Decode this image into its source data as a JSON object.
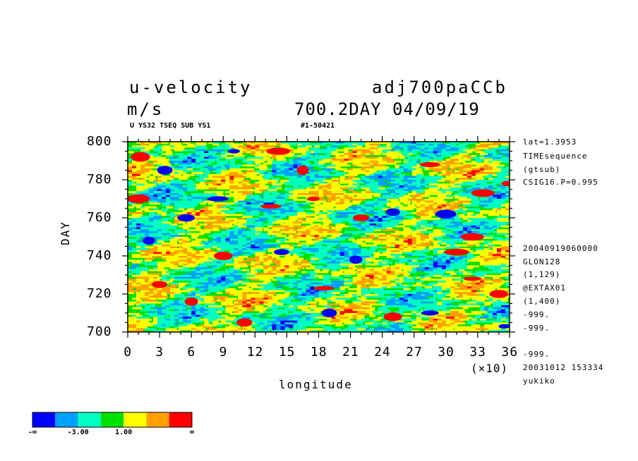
{
  "header": {
    "variable": "u-velocity",
    "units": "m/s",
    "experiment": "adj700paCCb",
    "time_label": "700.2DAY 04/09/19",
    "sub_left": "U YS32 TSEQ SUB YS1",
    "sub_right": "#1-50421"
  },
  "right_info": {
    "top": [
      "lat=1.3953",
      "TIMEsequence",
      "(gtsub)",
      "CSIG16.P=0.995"
    ],
    "bottom": [
      "20040919060000",
      "GLON128",
      "(1,129)",
      "@EXTAX01",
      "(1,400)",
      "-999.",
      "-999.",
      "-999.",
      "20031012 153334",
      "yukiko"
    ]
  },
  "chart_data": {
    "type": "heatmap",
    "title": "u-velocity",
    "xlabel": "longitude",
    "ylabel": "DAY",
    "x_multiplier": "(×10)",
    "xlim": [
      0,
      36
    ],
    "ylim": [
      700,
      800
    ],
    "x_ticks": [
      "0",
      "3",
      "6",
      "9",
      "12",
      "15",
      "18",
      "21",
      "24",
      "27",
      "30",
      "33",
      "36"
    ],
    "y_ticks": [
      "700",
      "720",
      "740",
      "760",
      "780",
      "800"
    ],
    "colorbar": {
      "colors": [
        "#0000ff",
        "#00a0ff",
        "#00ffc0",
        "#00e000",
        "#ffff00",
        "#ffa000",
        "#ff0000"
      ],
      "labels": [
        "-∞",
        "-3.00",
        "1.00",
        "∞"
      ]
    },
    "blobs": [
      {
        "x": 14.2,
        "y": 795,
        "c": 6
      },
      {
        "x": 16.5,
        "y": 785,
        "c": 6
      },
      {
        "x": 13.5,
        "y": 766,
        "c": 6
      },
      {
        "x": 17.5,
        "y": 770,
        "c": 6
      },
      {
        "x": 33.5,
        "y": 773,
        "c": 6
      },
      {
        "x": 35.8,
        "y": 778,
        "c": 6
      },
      {
        "x": 32.5,
        "y": 750,
        "c": 6
      },
      {
        "x": 31.0,
        "y": 742,
        "c": 6
      },
      {
        "x": 32.5,
        "y": 728,
        "c": 6
      },
      {
        "x": 18.5,
        "y": 723,
        "c": 6
      },
      {
        "x": 1.0,
        "y": 770,
        "c": 6
      },
      {
        "x": 1.2,
        "y": 792,
        "c": 6
      },
      {
        "x": 25.0,
        "y": 708,
        "c": 6
      },
      {
        "x": 6.0,
        "y": 716,
        "c": 6
      },
      {
        "x": 22.0,
        "y": 760,
        "c": 6
      },
      {
        "x": 9.0,
        "y": 740,
        "c": 6
      },
      {
        "x": 3.0,
        "y": 725,
        "c": 6
      },
      {
        "x": 28.5,
        "y": 788,
        "c": 6
      },
      {
        "x": 35.0,
        "y": 720,
        "c": 6
      },
      {
        "x": 11.0,
        "y": 705,
        "c": 6
      },
      {
        "x": 5.5,
        "y": 760,
        "c": 0
      },
      {
        "x": 8.5,
        "y": 770,
        "c": 0
      },
      {
        "x": 21.5,
        "y": 738,
        "c": 0
      },
      {
        "x": 25.0,
        "y": 763,
        "c": 0
      },
      {
        "x": 3.5,
        "y": 785,
        "c": 0
      },
      {
        "x": 28.5,
        "y": 710,
        "c": 0
      },
      {
        "x": 2.0,
        "y": 748,
        "c": 0
      },
      {
        "x": 14.5,
        "y": 742,
        "c": 0
      },
      {
        "x": 10.0,
        "y": 795,
        "c": 0
      },
      {
        "x": 30.0,
        "y": 762,
        "c": 0
      },
      {
        "x": 19.0,
        "y": 710,
        "c": 0
      },
      {
        "x": 35.5,
        "y": 703,
        "c": 0
      }
    ]
  }
}
